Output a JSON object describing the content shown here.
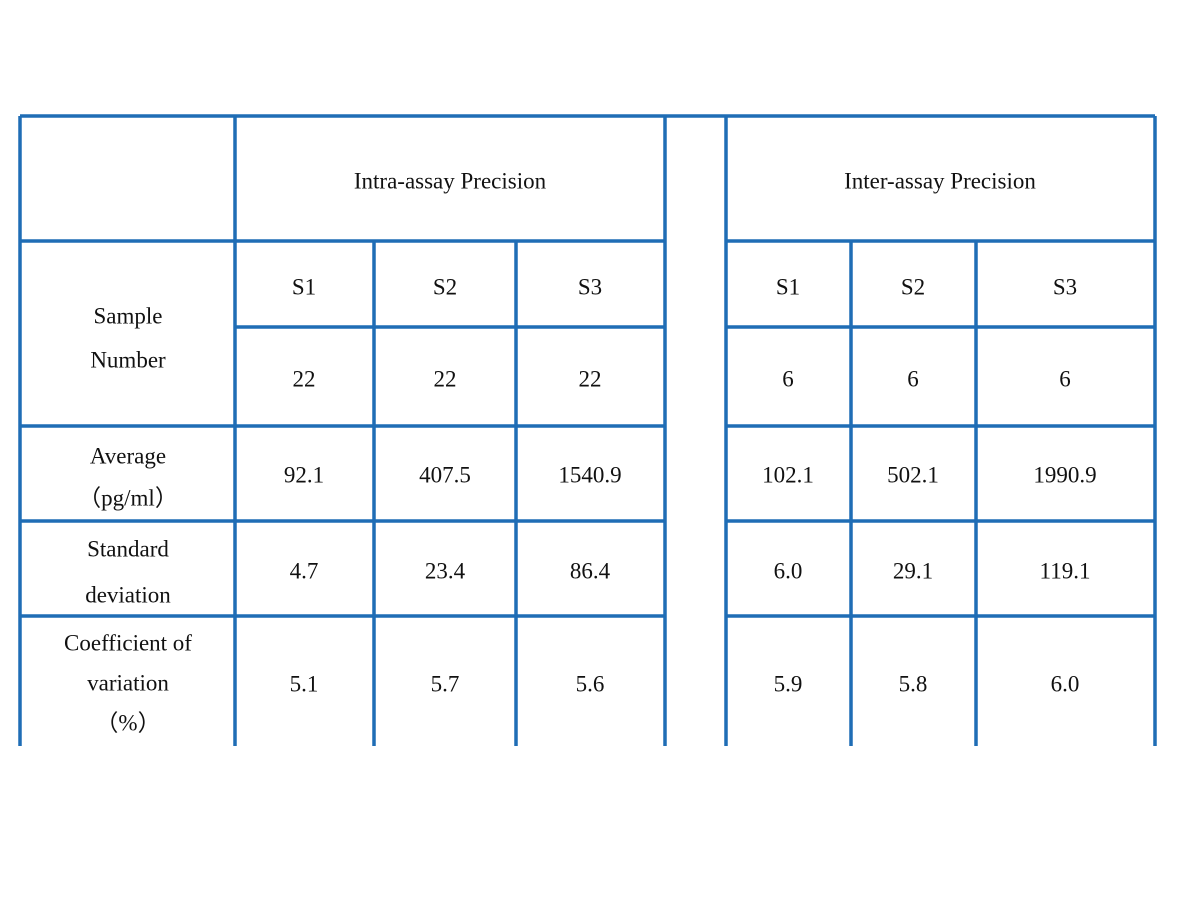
{
  "table": {
    "group_headers": [
      "Intra-assay Precision",
      "Inter-assay Precision"
    ],
    "row_labels": [
      [
        "Sample",
        "Number"
      ],
      [
        "Average",
        "（pg/ml）"
      ],
      [
        "Standard",
        "deviation"
      ],
      [
        "Coefficient of",
        "variation",
        "（%）"
      ]
    ],
    "groups": [
      {
        "samples": [
          "S1",
          "S2",
          "S3"
        ],
        "rows": [
          [
            "22",
            "22",
            "22"
          ],
          [
            "92.1",
            "407.5",
            "1540.9"
          ],
          [
            "4.7",
            "23.4",
            "86.4"
          ],
          [
            "5.1",
            "5.7",
            "5.6"
          ]
        ]
      },
      {
        "samples": [
          "S1",
          "S2",
          "S3"
        ],
        "rows": [
          [
            "6",
            "6",
            "6"
          ],
          [
            "102.1",
            "502.1",
            "1990.9"
          ],
          [
            "6.0",
            "29.1",
            "119.1"
          ],
          [
            "5.9",
            "5.8",
            "6.0"
          ]
        ]
      }
    ]
  }
}
